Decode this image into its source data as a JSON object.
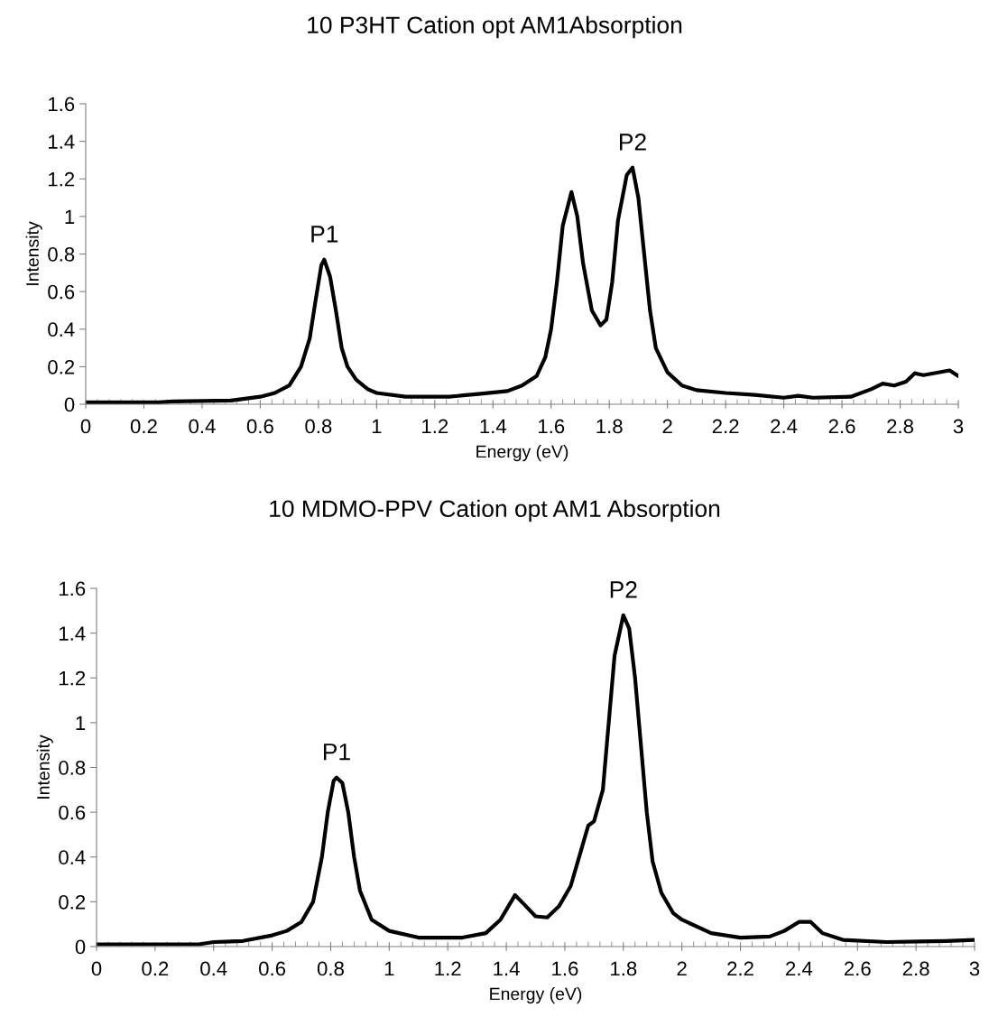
{
  "chart_data": [
    {
      "type": "line",
      "title": "10 P3HT Cation opt AM1Absorption",
      "xlabel": "Energy (eV)",
      "ylabel": "Intensity",
      "xlim": [
        0,
        3
      ],
      "ylim": [
        0,
        1.6
      ],
      "yticks": [
        0,
        0.2,
        0.4,
        0.6,
        0.8,
        1,
        1.2,
        1.4,
        1.6
      ],
      "xticks": [
        0,
        0.2,
        0.4,
        0.6,
        0.8,
        1,
        1.2,
        1.4,
        1.6,
        1.8,
        2,
        2.2,
        2.4,
        2.6,
        2.8,
        3
      ],
      "marker": "none",
      "line_style": "solid",
      "annotations": [
        {
          "text": "P1",
          "x": 0.82,
          "y": 0.77
        },
        {
          "text": "P2",
          "x": 1.88,
          "y": 1.26
        }
      ],
      "series": [
        {
          "color": "#000000",
          "x": [
            0,
            0.25,
            0.3,
            0.5,
            0.6,
            0.65,
            0.7,
            0.74,
            0.77,
            0.79,
            0.81,
            0.82,
            0.84,
            0.86,
            0.88,
            0.9,
            0.93,
            0.97,
            1.0,
            1.1,
            1.25,
            1.35,
            1.45,
            1.5,
            1.55,
            1.58,
            1.6,
            1.62,
            1.64,
            1.67,
            1.69,
            1.71,
            1.74,
            1.77,
            1.79,
            1.81,
            1.83,
            1.86,
            1.88,
            1.9,
            1.92,
            1.94,
            1.96,
            2.0,
            2.05,
            2.1,
            2.2,
            2.3,
            2.4,
            2.45,
            2.5,
            2.63,
            2.7,
            2.74,
            2.78,
            2.82,
            2.85,
            2.88,
            2.97,
            3.0
          ],
          "values": [
            0.01,
            0.01,
            0.015,
            0.02,
            0.04,
            0.06,
            0.1,
            0.2,
            0.35,
            0.55,
            0.74,
            0.77,
            0.68,
            0.5,
            0.3,
            0.2,
            0.13,
            0.08,
            0.06,
            0.04,
            0.04,
            0.055,
            0.07,
            0.1,
            0.15,
            0.25,
            0.4,
            0.65,
            0.95,
            1.13,
            1.0,
            0.75,
            0.5,
            0.42,
            0.45,
            0.65,
            0.98,
            1.22,
            1.26,
            1.1,
            0.8,
            0.5,
            0.3,
            0.17,
            0.1,
            0.075,
            0.06,
            0.05,
            0.035,
            0.045,
            0.035,
            0.04,
            0.08,
            0.11,
            0.1,
            0.12,
            0.165,
            0.155,
            0.18,
            0.15
          ]
        }
      ]
    },
    {
      "type": "line",
      "title": "10 MDMO-PPV Cation opt AM1 Absorption",
      "xlabel": "Energy (eV)",
      "ylabel": "Intensity",
      "xlim": [
        0,
        3
      ],
      "ylim": [
        0,
        1.6
      ],
      "yticks": [
        0,
        0.2,
        0.4,
        0.6,
        0.8,
        1,
        1.2,
        1.4,
        1.6
      ],
      "xticks": [
        0,
        0.2,
        0.4,
        0.6,
        0.8,
        1,
        1.2,
        1.4,
        1.6,
        1.8,
        2,
        2.2,
        2.4,
        2.6,
        2.8,
        3
      ],
      "marker": "none",
      "line_style": "solid",
      "annotations": [
        {
          "text": "P1",
          "x": 0.82,
          "y": 0.755
        },
        {
          "text": "P2",
          "x": 1.8,
          "y": 1.48
        }
      ],
      "series": [
        {
          "color": "#000000",
          "x": [
            0,
            0.35,
            0.4,
            0.5,
            0.6,
            0.65,
            0.7,
            0.74,
            0.77,
            0.79,
            0.81,
            0.82,
            0.84,
            0.86,
            0.88,
            0.9,
            0.94,
            1.0,
            1.1,
            1.25,
            1.33,
            1.38,
            1.43,
            1.46,
            1.5,
            1.54,
            1.58,
            1.62,
            1.66,
            1.68,
            1.7,
            1.73,
            1.75,
            1.77,
            1.8,
            1.82,
            1.84,
            1.86,
            1.88,
            1.9,
            1.93,
            1.97,
            2.0,
            2.1,
            2.2,
            2.3,
            2.35,
            2.4,
            2.44,
            2.48,
            2.55,
            2.7,
            2.9,
            3.0
          ],
          "values": [
            0.01,
            0.01,
            0.02,
            0.025,
            0.05,
            0.07,
            0.11,
            0.2,
            0.4,
            0.6,
            0.74,
            0.755,
            0.73,
            0.6,
            0.4,
            0.25,
            0.12,
            0.07,
            0.04,
            0.04,
            0.06,
            0.12,
            0.23,
            0.19,
            0.135,
            0.13,
            0.18,
            0.27,
            0.45,
            0.54,
            0.56,
            0.7,
            1.0,
            1.3,
            1.48,
            1.42,
            1.2,
            0.9,
            0.6,
            0.38,
            0.24,
            0.15,
            0.12,
            0.06,
            0.04,
            0.045,
            0.07,
            0.11,
            0.11,
            0.06,
            0.03,
            0.02,
            0.025,
            0.03
          ]
        }
      ]
    }
  ]
}
